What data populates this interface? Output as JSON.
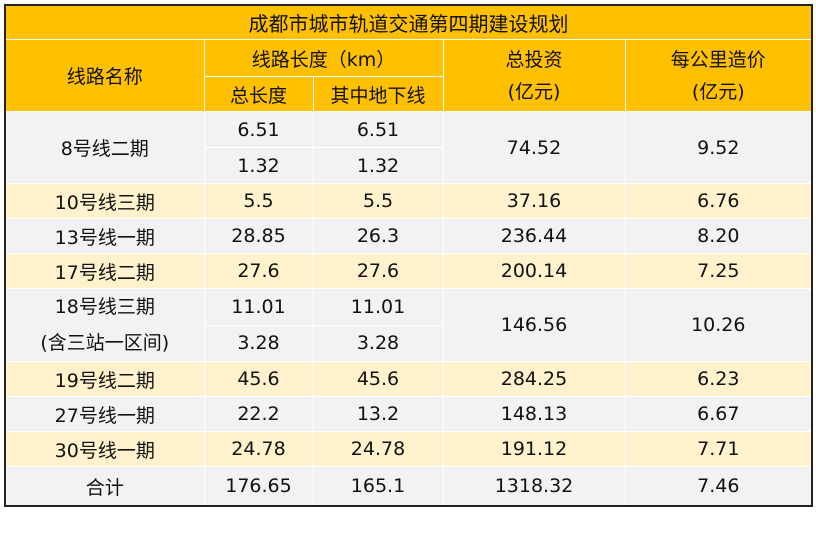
{
  "title": "成都市城市轨道交通第四期建设规划",
  "headers": {
    "line_name": "线路名称",
    "length_group": "线路长度（km）",
    "total_length": "总长度",
    "underground_length": "其中地下线",
    "investment_line1": "总投资",
    "investment_line2": "(亿元)",
    "cost_line1": "每公里造价",
    "cost_line2": "(亿元)"
  },
  "rows": [
    {
      "name": "8号线二期",
      "total_a": "6.51",
      "under_a": "6.51",
      "total_b": "1.32",
      "under_b": "1.32",
      "investment": "74.52",
      "cost": "9.52"
    },
    {
      "name": "10号线三期",
      "total": "5.5",
      "under": "5.5",
      "investment": "37.16",
      "cost": "6.76"
    },
    {
      "name": "13号线一期",
      "total": "28.85",
      "under": "26.3",
      "investment": "236.44",
      "cost": "8.20"
    },
    {
      "name": "17号线二期",
      "total": "27.6",
      "under": "27.6",
      "investment": "200.14",
      "cost": "7.25"
    },
    {
      "name_line1": "18号线三期",
      "name_line2": "(含三站一区间)",
      "total_a": "11.01",
      "under_a": "11.01",
      "total_b": "3.28",
      "under_b": "3.28",
      "investment": "146.56",
      "cost": "10.26"
    },
    {
      "name": "19号线二期",
      "total": "45.6",
      "under": "45.6",
      "investment": "284.25",
      "cost": "6.23"
    },
    {
      "name": "27号线一期",
      "total": "22.2",
      "under": "13.2",
      "investment": "148.13",
      "cost": "6.67"
    },
    {
      "name": "30号线一期",
      "total": "24.78",
      "under": "24.78",
      "investment": "191.12",
      "cost": "7.71"
    }
  ],
  "total_row": {
    "name": "合计",
    "total": "176.65",
    "under": "165.1",
    "investment": "1318.32",
    "cost": "7.46"
  },
  "colors": {
    "header": "#ffc000",
    "stripe": "#fff2cc",
    "gray": "#f2f2f2"
  }
}
